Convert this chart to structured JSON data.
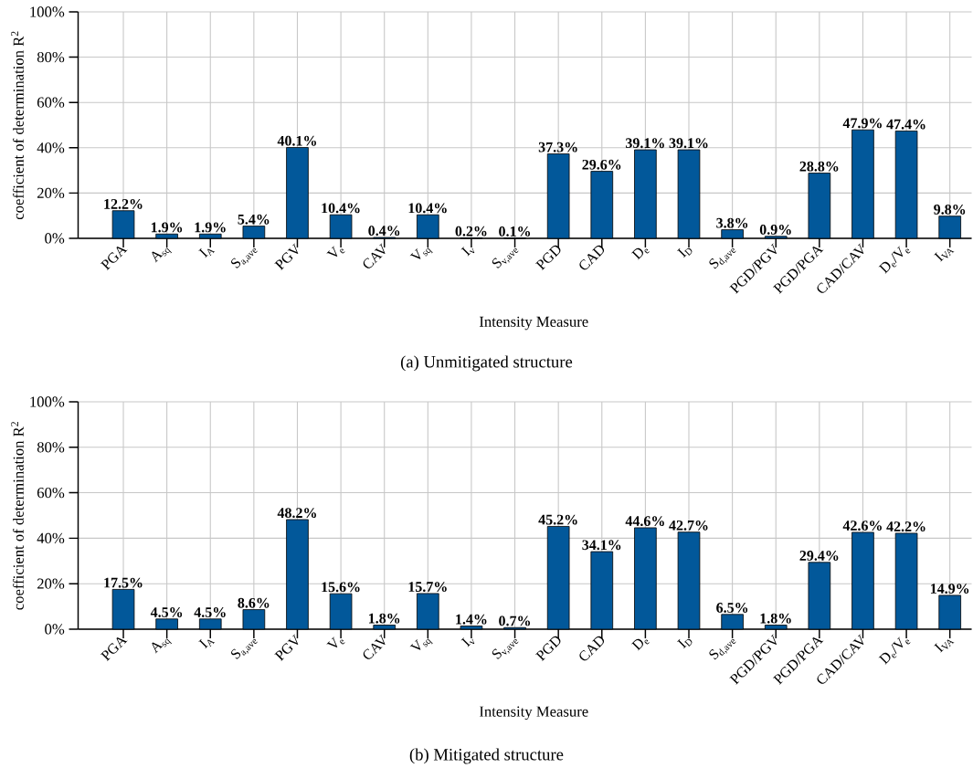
{
  "chart_data": [
    {
      "type": "bar",
      "annotations": [
        "(a) Unmitigated structure"
      ],
      "xlabel": "Intensity Measure",
      "ylabel": "coefficient of determination R$^{2}$",
      "categories": [
        "PGA",
        "A$_{sq}$",
        "I$_{A}$",
        "S$_{a,ave}$",
        "PGV",
        "V$_{e}$",
        "CAV",
        "V$_{sq}$",
        "I$_{v}$",
        "S$_{v,ave}$",
        "PGD",
        "CAD",
        "D$_{e}$",
        "I$_{D}$",
        "S$_{d,ave}$",
        "PGD/PGV",
        "PGD/PGA",
        "CAD/CAV",
        "D$_{e}$/V$_{e}$",
        "I$_{VA}$"
      ],
      "values": [
        12.2,
        1.9,
        1.9,
        5.4,
        40.1,
        10.4,
        0.4,
        10.4,
        0.2,
        0.1,
        37.3,
        29.6,
        39.1,
        39.1,
        3.8,
        0.9,
        28.8,
        47.9,
        47.4,
        9.8
      ],
      "value_labels": [
        "12.2%",
        "1.9%",
        "1.9%",
        "5.4%",
        "40.1%",
        "10.4%",
        "0.4%",
        "10.4%",
        "0.2%",
        "0.1%",
        "37.3%",
        "29.6%",
        "39.1%",
        "39.1%",
        "3.8%",
        "0.9%",
        "28.8%",
        "47.9%",
        "47.4%",
        "9.8%"
      ],
      "color": "#02589a",
      "ylim": [
        0,
        100
      ],
      "yticks": [
        {
          "value": 0,
          "label": "0%"
        },
        {
          "value": 20,
          "label": "20%"
        },
        {
          "value": 40,
          "label": "40%"
        },
        {
          "value": 60,
          "label": "60%"
        },
        {
          "value": 80,
          "label": "80%"
        },
        {
          "value": 100,
          "label": "100%"
        }
      ],
      "grid": true
    },
    {
      "type": "bar",
      "annotations": [
        "(b) Mitigated structure"
      ],
      "xlabel": "Intensity Measure",
      "ylabel": "coefficient of determination R$^{2}$",
      "categories": [
        "PGA",
        "A$_{sq}$",
        "I$_{A}$",
        "S$_{a,ave}$",
        "PGV",
        "V$_{e}$",
        "CAV",
        "V$_{sq}$",
        "I$_{v}$",
        "S$_{v,ave}$",
        "PGD",
        "CAD",
        "D$_{e}$",
        "I$_{D}$",
        "S$_{d,ave}$",
        "PGD/PGV",
        "PGD/PGA",
        "CAD/CAV",
        "D$_{e}$/V$_{e}$",
        "I$_{VA}$"
      ],
      "values": [
        17.5,
        4.5,
        4.5,
        8.6,
        48.2,
        15.6,
        1.8,
        15.7,
        1.4,
        0.7,
        45.2,
        34.1,
        44.6,
        42.7,
        6.5,
        1.8,
        29.4,
        42.6,
        42.2,
        14.9
      ],
      "value_labels": [
        "17.5%",
        "4.5%",
        "4.5%",
        "8.6%",
        "48.2%",
        "15.6%",
        "1.8%",
        "15.7%",
        "1.4%",
        "0.7%",
        "45.2%",
        "34.1%",
        "44.6%",
        "42.7%",
        "6.5%",
        "1.8%",
        "29.4%",
        "42.6%",
        "42.2%",
        "14.9%"
      ],
      "color": "#02589a",
      "ylim": [
        0,
        100
      ],
      "yticks": [
        {
          "value": 0,
          "label": "0%"
        },
        {
          "value": 20,
          "label": "20%"
        },
        {
          "value": 40,
          "label": "40%"
        },
        {
          "value": 60,
          "label": "60%"
        },
        {
          "value": 80,
          "label": "80%"
        },
        {
          "value": 100,
          "label": "100%"
        }
      ],
      "grid": true
    }
  ]
}
